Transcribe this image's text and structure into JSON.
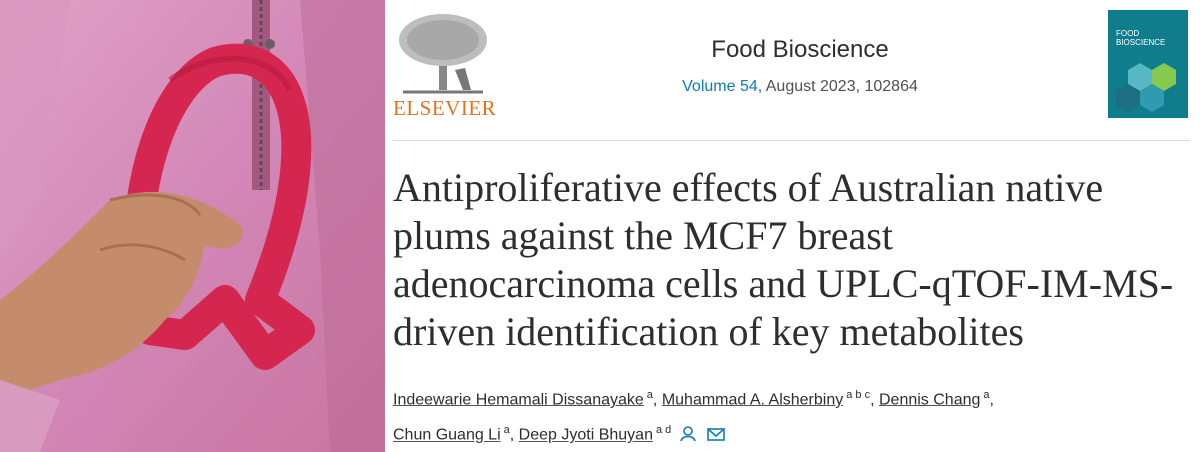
{
  "publisher": {
    "name": "ELSEVIER"
  },
  "journal": {
    "name": "Food Bioscience",
    "volume": "Volume 54",
    "issue_info": ", August 2023, 102864"
  },
  "cover": {
    "title_lines": [
      "FOOD",
      "BIOSCIENCE"
    ]
  },
  "article": {
    "title_lines": [
      "Antiproliferative effects of Australian native",
      "plums against the MCF7 breast",
      "adenocarcinoma cells and UPLC-qTOF-IM-MS-",
      "driven identification of key metabolites"
    ],
    "author_lines": [
      [
        {
          "name": "Indeewarie Hemamali Dissanayake",
          "affiliations": "a",
          "punctuation": ","
        },
        {
          "name": "Muhammad A. Alsherbiny",
          "affiliations": "a b c",
          "punctuation": ","
        },
        {
          "name": "Dennis Chang",
          "affiliations": "a",
          "punctuation": ","
        }
      ],
      [
        {
          "name": "Chun Guang Li",
          "affiliations": "a",
          "punctuation": ","
        },
        {
          "name": "Deep Jyoti Bhuyan",
          "affiliations": "a d"
        }
      ]
    ]
  }
}
